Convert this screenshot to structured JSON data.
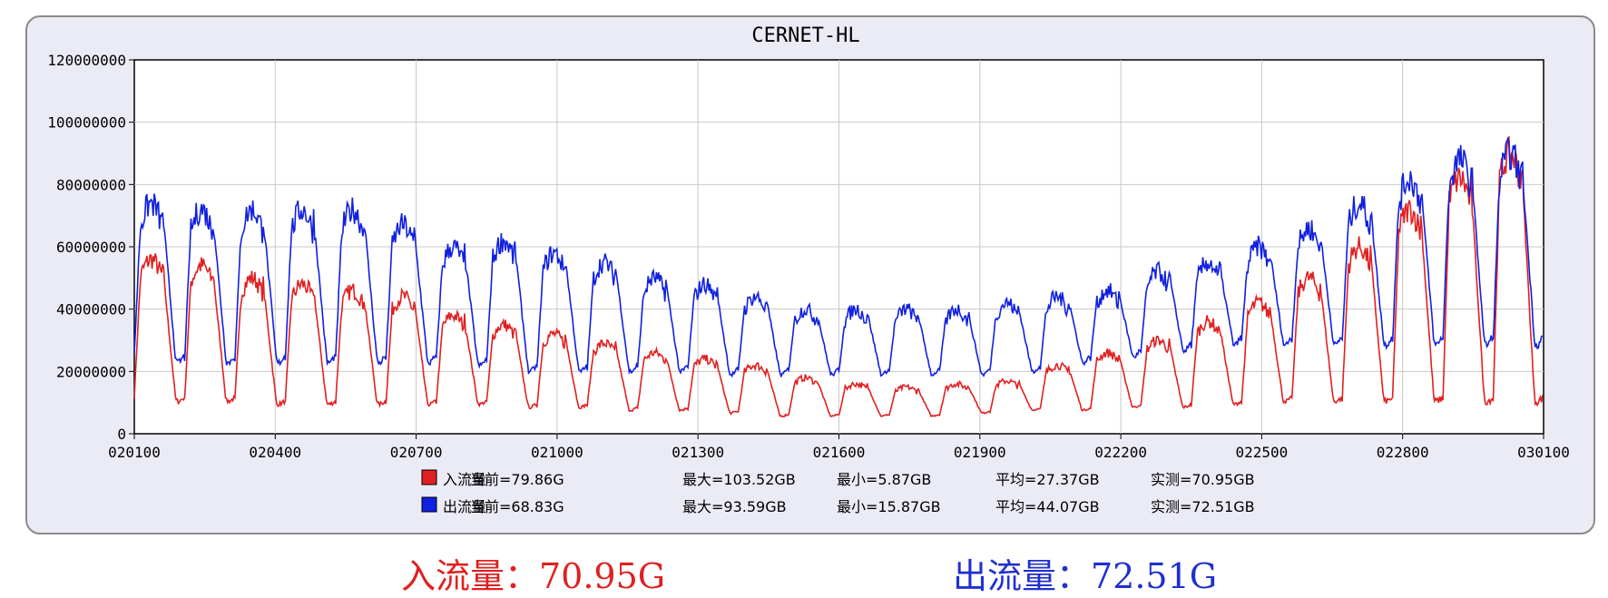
{
  "chart_data": {
    "type": "line",
    "title": "CERNET-HL",
    "ylim": [
      0,
      120000000
    ],
    "y_ticks": [
      0,
      20000000,
      40000000,
      60000000,
      80000000,
      100000000,
      120000000
    ],
    "y_tick_labels": [
      "0",
      "20000000",
      "40000000",
      "60000000",
      "80000000",
      "100000000",
      "120000000"
    ],
    "x_ticks": [
      "020100",
      "020400",
      "020700",
      "021000",
      "021300",
      "021600",
      "021900",
      "022200",
      "022500",
      "022800",
      "030100"
    ],
    "grid": true,
    "x_days": 28,
    "series": [
      {
        "name": "入流量",
        "color": "#e02020",
        "daily_peaks": [
          56000000,
          54000000,
          50000000,
          48000000,
          46000000,
          44000000,
          38000000,
          35000000,
          32000000,
          29000000,
          26000000,
          24000000,
          22000000,
          18000000,
          16000000,
          15000000,
          16000000,
          17000000,
          22000000,
          26000000,
          30000000,
          36000000,
          42000000,
          50000000,
          60000000,
          72000000,
          82000000,
          90000000
        ],
        "daily_troughs": [
          12000000,
          11000000,
          11000000,
          10000000,
          10000000,
          10000000,
          10000000,
          10000000,
          9000000,
          9000000,
          8000000,
          8000000,
          7000000,
          6000000,
          6000000,
          6000000,
          6000000,
          7000000,
          8000000,
          8000000,
          9000000,
          9000000,
          10000000,
          11000000,
          11000000,
          11000000,
          11000000,
          11000000
        ]
      },
      {
        "name": "出流量",
        "color": "#1020e0",
        "daily_peaks": [
          74000000,
          72000000,
          72000000,
          72000000,
          72000000,
          67000000,
          60000000,
          62000000,
          58000000,
          55000000,
          50000000,
          48000000,
          44000000,
          40000000,
          40000000,
          40000000,
          40000000,
          42000000,
          44000000,
          46000000,
          52000000,
          55000000,
          60000000,
          66000000,
          74000000,
          82000000,
          88000000,
          90000000
        ],
        "daily_troughs": [
          26000000,
          24000000,
          24000000,
          24000000,
          24000000,
          24000000,
          24000000,
          23000000,
          21000000,
          21000000,
          21000000,
          21000000,
          20000000,
          20000000,
          20000000,
          20000000,
          20000000,
          20000000,
          21000000,
          24000000,
          26000000,
          28000000,
          30000000,
          30000000,
          30000000,
          30000000,
          30000000,
          30000000
        ]
      }
    ]
  },
  "legend": [
    {
      "name": "入流量",
      "color": "#e02020",
      "current": "当前=79.86G",
      "max": "最大=103.52GB",
      "min": "最小=5.87GB",
      "avg": "平均=27.37GB",
      "measured": "实测=70.95GB"
    },
    {
      "name": "出流量",
      "color": "#1020e0",
      "current": "当前=68.83G",
      "max": "最大=93.59GB",
      "min": "最小=15.87GB",
      "avg": "平均=44.07GB",
      "measured": "实测=72.51GB"
    }
  ],
  "summary": {
    "inbound": "入流量：70.95G",
    "outbound": "出流量：72.51G"
  }
}
